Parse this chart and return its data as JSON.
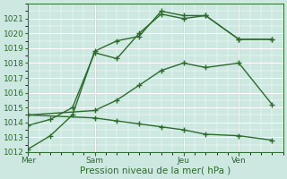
{
  "xlabel": "Pression niveau de la mer( hPa )",
  "bg_color": "#cce8e0",
  "grid_color": "#ffffff",
  "line_color": "#2d6b2d",
  "ylim": [
    1012,
    1022
  ],
  "yticks": [
    1012,
    1013,
    1014,
    1015,
    1016,
    1017,
    1018,
    1019,
    1020,
    1021
  ],
  "xtick_labels": [
    "Mer",
    "Sam",
    "Jeu",
    "Ven"
  ],
  "xtick_positions": [
    0,
    6,
    14,
    19
  ],
  "xlim": [
    0,
    23
  ],
  "lines": [
    {
      "x": [
        0,
        2,
        4,
        6,
        8,
        10,
        12,
        14,
        16,
        19,
        22
      ],
      "y": [
        1012.2,
        1013.1,
        1014.5,
        1018.8,
        1019.5,
        1019.8,
        1021.5,
        1021.2,
        1021.2,
        1019.6,
        1019.6
      ]
    },
    {
      "x": [
        0,
        2,
        4,
        6,
        8,
        10,
        12,
        14,
        16,
        19,
        22
      ],
      "y": [
        1013.8,
        1014.2,
        1015.0,
        1018.7,
        1018.3,
        1020.0,
        1021.3,
        1021.0,
        1021.2,
        1019.6,
        1019.6
      ]
    },
    {
      "x": [
        0,
        6,
        8,
        10,
        12,
        14,
        16,
        19,
        22
      ],
      "y": [
        1014.5,
        1014.8,
        1015.5,
        1016.5,
        1017.5,
        1018.0,
        1017.7,
        1018.0,
        1015.2
      ]
    },
    {
      "x": [
        0,
        6,
        8,
        10,
        12,
        14,
        16,
        19,
        22
      ],
      "y": [
        1014.5,
        1014.3,
        1014.1,
        1013.9,
        1013.7,
        1013.5,
        1013.2,
        1013.1,
        1012.8
      ]
    }
  ],
  "vlines_x": [
    0,
    6,
    14,
    19
  ],
  "marker": "+",
  "markersize": 4,
  "linewidth": 1.0,
  "fontsize_tick": 6.5,
  "fontsize_xlabel": 7.5
}
